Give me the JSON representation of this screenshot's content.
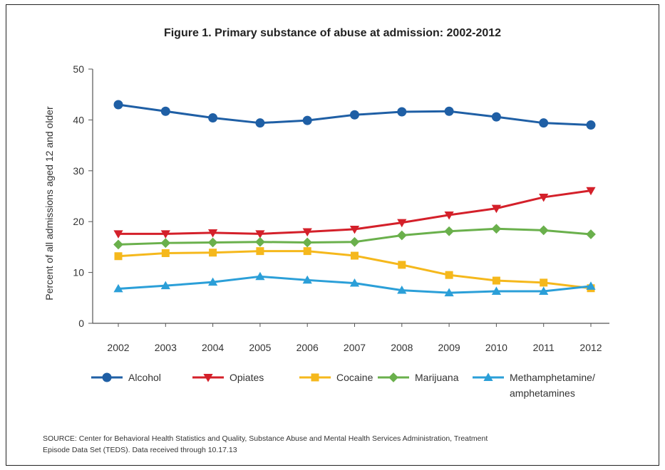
{
  "chart_data": {
    "type": "line",
    "title": "Figure 1. Primary substance of abuse at admission: 2002-2012",
    "xlabel": "",
    "ylabel": "Percent of all admissions aged 12 and older",
    "ylim": [
      0,
      50
    ],
    "yticks": [
      "0",
      "10",
      "20",
      "30",
      "40",
      "50"
    ],
    "categories": [
      "2002",
      "2003",
      "2004",
      "2005",
      "2006",
      "2007",
      "2008",
      "2009",
      "2010",
      "2011",
      "2012"
    ],
    "grid": false,
    "legend_position": "bottom",
    "series": [
      {
        "name": "Alcohol",
        "color": "#1f5fa5",
        "marker": "circle",
        "values": [
          43.0,
          41.7,
          40.4,
          39.4,
          39.9,
          41.0,
          41.6,
          41.7,
          40.6,
          39.4,
          39.0
        ]
      },
      {
        "name": "Opiates",
        "color": "#d4202a",
        "marker": "triangle-down",
        "values": [
          17.6,
          17.6,
          17.8,
          17.6,
          18.0,
          18.5,
          19.8,
          21.3,
          22.6,
          24.8,
          26.1
        ]
      },
      {
        "name": "Cocaine",
        "color": "#f5b81c",
        "marker": "square",
        "values": [
          13.2,
          13.8,
          13.9,
          14.2,
          14.2,
          13.3,
          11.5,
          9.5,
          8.4,
          8.0,
          6.9
        ]
      },
      {
        "name": "Marijuana",
        "color": "#6ab04c",
        "marker": "diamond",
        "values": [
          15.5,
          15.8,
          15.9,
          16.0,
          15.9,
          16.0,
          17.3,
          18.1,
          18.6,
          18.3,
          17.5
        ]
      },
      {
        "name": "Methamphetamine/ amphetamines",
        "color": "#2b9fd8",
        "marker": "triangle-up",
        "values": [
          6.8,
          7.4,
          8.1,
          9.2,
          8.5,
          7.9,
          6.5,
          6.0,
          6.3,
          6.3,
          7.3
        ]
      }
    ],
    "legend": [
      {
        "label_line1": "Alcohol",
        "label_line2": ""
      },
      {
        "label_line1": "Opiates",
        "label_line2": ""
      },
      {
        "label_line1": "Cocaine",
        "label_line2": ""
      },
      {
        "label_line1": "Marijuana",
        "label_line2": ""
      },
      {
        "label_line1": "Methamphetamine/",
        "label_line2": "amphetamines"
      }
    ]
  },
  "source": {
    "line1": "SOURCE: Center for Behavioral Health Statistics and Quality, Substance Abuse and Mental Health Services Administration, Treatment",
    "line2": "Episode Data Set (TEDS). Data received through 10.17.13"
  }
}
